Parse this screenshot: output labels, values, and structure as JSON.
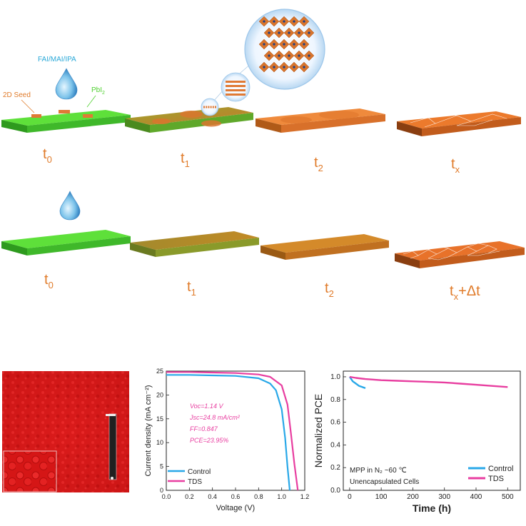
{
  "schematic": {
    "top_row": {
      "labels": {
        "precursor": "FAI/MAI/IPA",
        "seed": "2D Seed",
        "pbi2_main": "PbI",
        "pbi2_sub": "2"
      },
      "stages": [
        {
          "main": "t",
          "sub": "0",
          "suffix": ""
        },
        {
          "main": "t",
          "sub": "1",
          "suffix": ""
        },
        {
          "main": "t",
          "sub": "2",
          "suffix": ""
        },
        {
          "main": "t",
          "sub": "x",
          "suffix": ""
        }
      ]
    },
    "bottom_row": {
      "stages": [
        {
          "main": "t",
          "sub": "0",
          "suffix": ""
        },
        {
          "main": "t",
          "sub": "1",
          "suffix": ""
        },
        {
          "main": "t",
          "sub": "2",
          "suffix": ""
        },
        {
          "main": "t",
          "sub": "x",
          "suffix": "+Δt"
        }
      ]
    },
    "colors": {
      "green": "#4fd02f",
      "orange": "#e8782a",
      "label": "#e07b2a",
      "cyan": "#29a8d8"
    }
  },
  "chart_data": [
    {
      "type": "line",
      "xlabel": "Voltage (V)",
      "ylabel": "Current density (mA cm⁻²)",
      "xlim": [
        0.0,
        1.2
      ],
      "ylim": [
        0,
        25
      ],
      "xticks": [
        "0.0",
        "0.2",
        "0.4",
        "0.6",
        "0.8",
        "1.0",
        "1.2"
      ],
      "yticks": [
        "0",
        "5",
        "10",
        "15",
        "20",
        "25"
      ],
      "annotations": [
        "Voc=1.14 V",
        "Jsc=24.8 mA/cm²",
        "FF=0.847",
        "PCE=23.95%"
      ],
      "legend_position": "bottom-left",
      "series": [
        {
          "name": "Control",
          "color": "#29a8e8",
          "x": [
            0.0,
            0.2,
            0.4,
            0.6,
            0.8,
            0.9,
            0.95,
            1.0,
            1.03,
            1.05,
            1.07
          ],
          "y": [
            24.2,
            24.2,
            24.1,
            24.0,
            23.5,
            22.4,
            21.0,
            17.0,
            11.0,
            5.0,
            0.0
          ]
        },
        {
          "name": "TDS",
          "color": "#e83ea0",
          "x": [
            0.0,
            0.2,
            0.4,
            0.6,
            0.8,
            0.9,
            1.0,
            1.05,
            1.08,
            1.11,
            1.14
          ],
          "y": [
            24.8,
            24.8,
            24.7,
            24.6,
            24.3,
            23.8,
            22.0,
            18.0,
            12.0,
            5.5,
            0.0
          ]
        }
      ]
    },
    {
      "type": "line",
      "xlabel": "Time (h)",
      "ylabel": "Normalized PCE",
      "xlim": [
        -20,
        540
      ],
      "ylim": [
        0.0,
        1.05
      ],
      "xticks": [
        "0",
        "100",
        "200",
        "300",
        "400",
        "500"
      ],
      "yticks": [
        "0.0",
        "0.2",
        "0.4",
        "0.6",
        "0.8",
        "1.0"
      ],
      "annotations": [
        "MPP in N₂ ~60 ℃",
        "Unencapsulated Cells"
      ],
      "legend_position": "bottom-right",
      "series": [
        {
          "name": "Control",
          "color": "#29a8e8",
          "x": [
            0,
            10,
            20,
            30,
            40,
            50
          ],
          "y": [
            1.0,
            0.96,
            0.94,
            0.92,
            0.91,
            0.9
          ]
        },
        {
          "name": "TDS",
          "color": "#e83ea0",
          "x": [
            0,
            20,
            50,
            100,
            150,
            200,
            250,
            300,
            350,
            400,
            450,
            500
          ],
          "y": [
            1.0,
            0.99,
            0.98,
            0.97,
            0.965,
            0.96,
            0.955,
            0.95,
            0.94,
            0.93,
            0.92,
            0.91
          ]
        }
      ]
    }
  ]
}
